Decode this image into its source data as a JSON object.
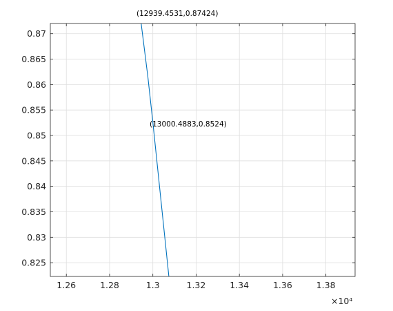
{
  "chart_data": {
    "type": "line",
    "title": "",
    "xlabel": "",
    "ylabel": "",
    "x_exponent_label": "×10⁴",
    "xlim": [
      1.2526,
      1.3935
    ],
    "ylim": [
      0.8223,
      0.872
    ],
    "x_ticks": [
      1.26,
      1.28,
      1.3,
      1.32,
      1.34,
      1.36,
      1.38
    ],
    "x_tick_labels": [
      "1.26",
      "1.28",
      "1.3",
      "1.32",
      "1.34",
      "1.36",
      "1.38"
    ],
    "y_ticks": [
      0.825,
      0.83,
      0.835,
      0.84,
      0.845,
      0.85,
      0.855,
      0.86,
      0.865,
      0.87
    ],
    "y_tick_labels": [
      "0.825",
      "0.83",
      "0.835",
      "0.84",
      "0.845",
      "0.85",
      "0.855",
      "0.86",
      "0.865",
      "0.87"
    ],
    "grid": true,
    "series": [
      {
        "color": "#0072bd",
        "points": [
          [
            1.29386,
            0.8745
          ],
          [
            1.2977,
            0.8615
          ],
          [
            1.30005,
            0.8524
          ],
          [
            1.3074,
            0.8223
          ]
        ]
      }
    ],
    "annotations": [
      {
        "text": "(12939.4531,0.87424)"
      },
      {
        "text": "(13000.4883,0.8524)"
      }
    ]
  }
}
